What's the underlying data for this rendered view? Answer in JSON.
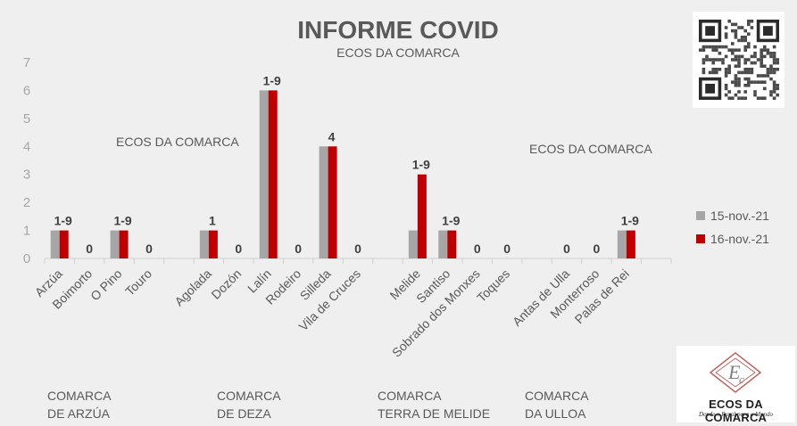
{
  "chart_data": {
    "type": "bar",
    "title": "INFORME COVID",
    "subtitle": "ECOS DA COMARCA",
    "watermarks": [
      "ECOS DA COMARCA",
      "ECOS DA COMARCA"
    ],
    "ylim": [
      0,
      7
    ],
    "yticks": [
      0,
      1,
      2,
      3,
      4,
      5,
      6,
      7
    ],
    "categories": [
      "Arzúa",
      "Boimorto",
      "O Pino",
      "Touro",
      "",
      "Agolada",
      "Dozón",
      "Lalín",
      "Rodeiro",
      "Silleda",
      "Vila de Cruces",
      "",
      "Melide",
      "Santiso",
      "Sobrado dos Monxes",
      "Toques",
      "",
      "Antas de Ulla",
      "Monterroso",
      "Palas de Rei",
      ""
    ],
    "series": [
      {
        "name": "15-nov.-21",
        "color": "#a6a6a6",
        "values": [
          1,
          0,
          1,
          0,
          null,
          1,
          0,
          6,
          0,
          4,
          0,
          null,
          1,
          1,
          0,
          0,
          null,
          0,
          0,
          1,
          null
        ]
      },
      {
        "name": "16-nov.-21",
        "color": "#c00000",
        "values": [
          1,
          0,
          1,
          0,
          null,
          1,
          0,
          6,
          0,
          4,
          0,
          null,
          3,
          1,
          0,
          0,
          null,
          0,
          0,
          1,
          null
        ]
      }
    ],
    "data_labels": [
      "1-9",
      "0",
      "1-9",
      "0",
      "",
      "1",
      "0",
      "1-9",
      "0",
      "4",
      "0",
      "",
      "1-9",
      "1-9",
      "0",
      "0",
      "",
      "0",
      "0",
      "1-9",
      ""
    ],
    "legend_position": "right",
    "groups": [
      {
        "line1": "COMARCA",
        "line2": "DE ARZÚA"
      },
      {
        "line1": "COMARCA",
        "line2": "DE DEZA"
      },
      {
        "line1": "COMARCA",
        "line2": "TERRA DE MELIDE"
      },
      {
        "line1": "COMARCA",
        "line2": "DA ULLOA"
      }
    ]
  },
  "logo": {
    "brand": "ECOS DA COMARCA",
    "tagline": "Dende o Rural para o Mundo"
  }
}
